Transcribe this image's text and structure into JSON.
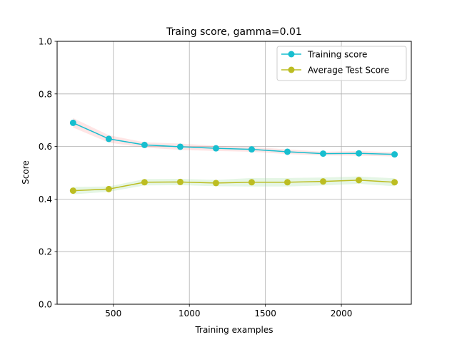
{
  "chart_data": {
    "type": "line",
    "title": "Traing score, gamma=0.01",
    "xlabel": "Training examples",
    "ylabel": "Score",
    "xlim": [
      130,
      2460
    ],
    "ylim": [
      0.0,
      1.0
    ],
    "x_ticks": [
      500,
      1000,
      1500,
      2000
    ],
    "y_ticks": [
      0.0,
      0.2,
      0.4,
      0.6,
      0.8,
      1.0
    ],
    "y_tick_labels": [
      "0.0",
      "0.2",
      "0.4",
      "0.6",
      "0.8",
      "1.0"
    ],
    "grid": true,
    "legend_position": "top-right",
    "x": [
      235,
      470,
      705,
      940,
      1175,
      1410,
      1645,
      1880,
      2115,
      2350
    ],
    "series": [
      {
        "name": "Training score",
        "color": "#17becf",
        "band_color": "#ff9999",
        "values": [
          0.69,
          0.629,
          0.606,
          0.599,
          0.593,
          0.589,
          0.58,
          0.573,
          0.574,
          0.57
        ],
        "band_lower": [
          0.672,
          0.615,
          0.596,
          0.587,
          0.583,
          0.58,
          0.571,
          0.566,
          0.565,
          0.562
        ],
        "band_upper": [
          0.708,
          0.643,
          0.616,
          0.611,
          0.603,
          0.598,
          0.589,
          0.58,
          0.583,
          0.578
        ]
      },
      {
        "name": "Average Test Score",
        "color": "#bcbd22",
        "band_color": "#99dd99",
        "values": [
          0.432,
          0.438,
          0.464,
          0.465,
          0.461,
          0.464,
          0.464,
          0.467,
          0.472,
          0.464
        ],
        "band_lower": [
          0.418,
          0.428,
          0.452,
          0.453,
          0.449,
          0.448,
          0.448,
          0.452,
          0.458,
          0.449
        ],
        "band_upper": [
          0.446,
          0.448,
          0.476,
          0.477,
          0.473,
          0.48,
          0.48,
          0.482,
          0.486,
          0.479
        ]
      }
    ]
  }
}
